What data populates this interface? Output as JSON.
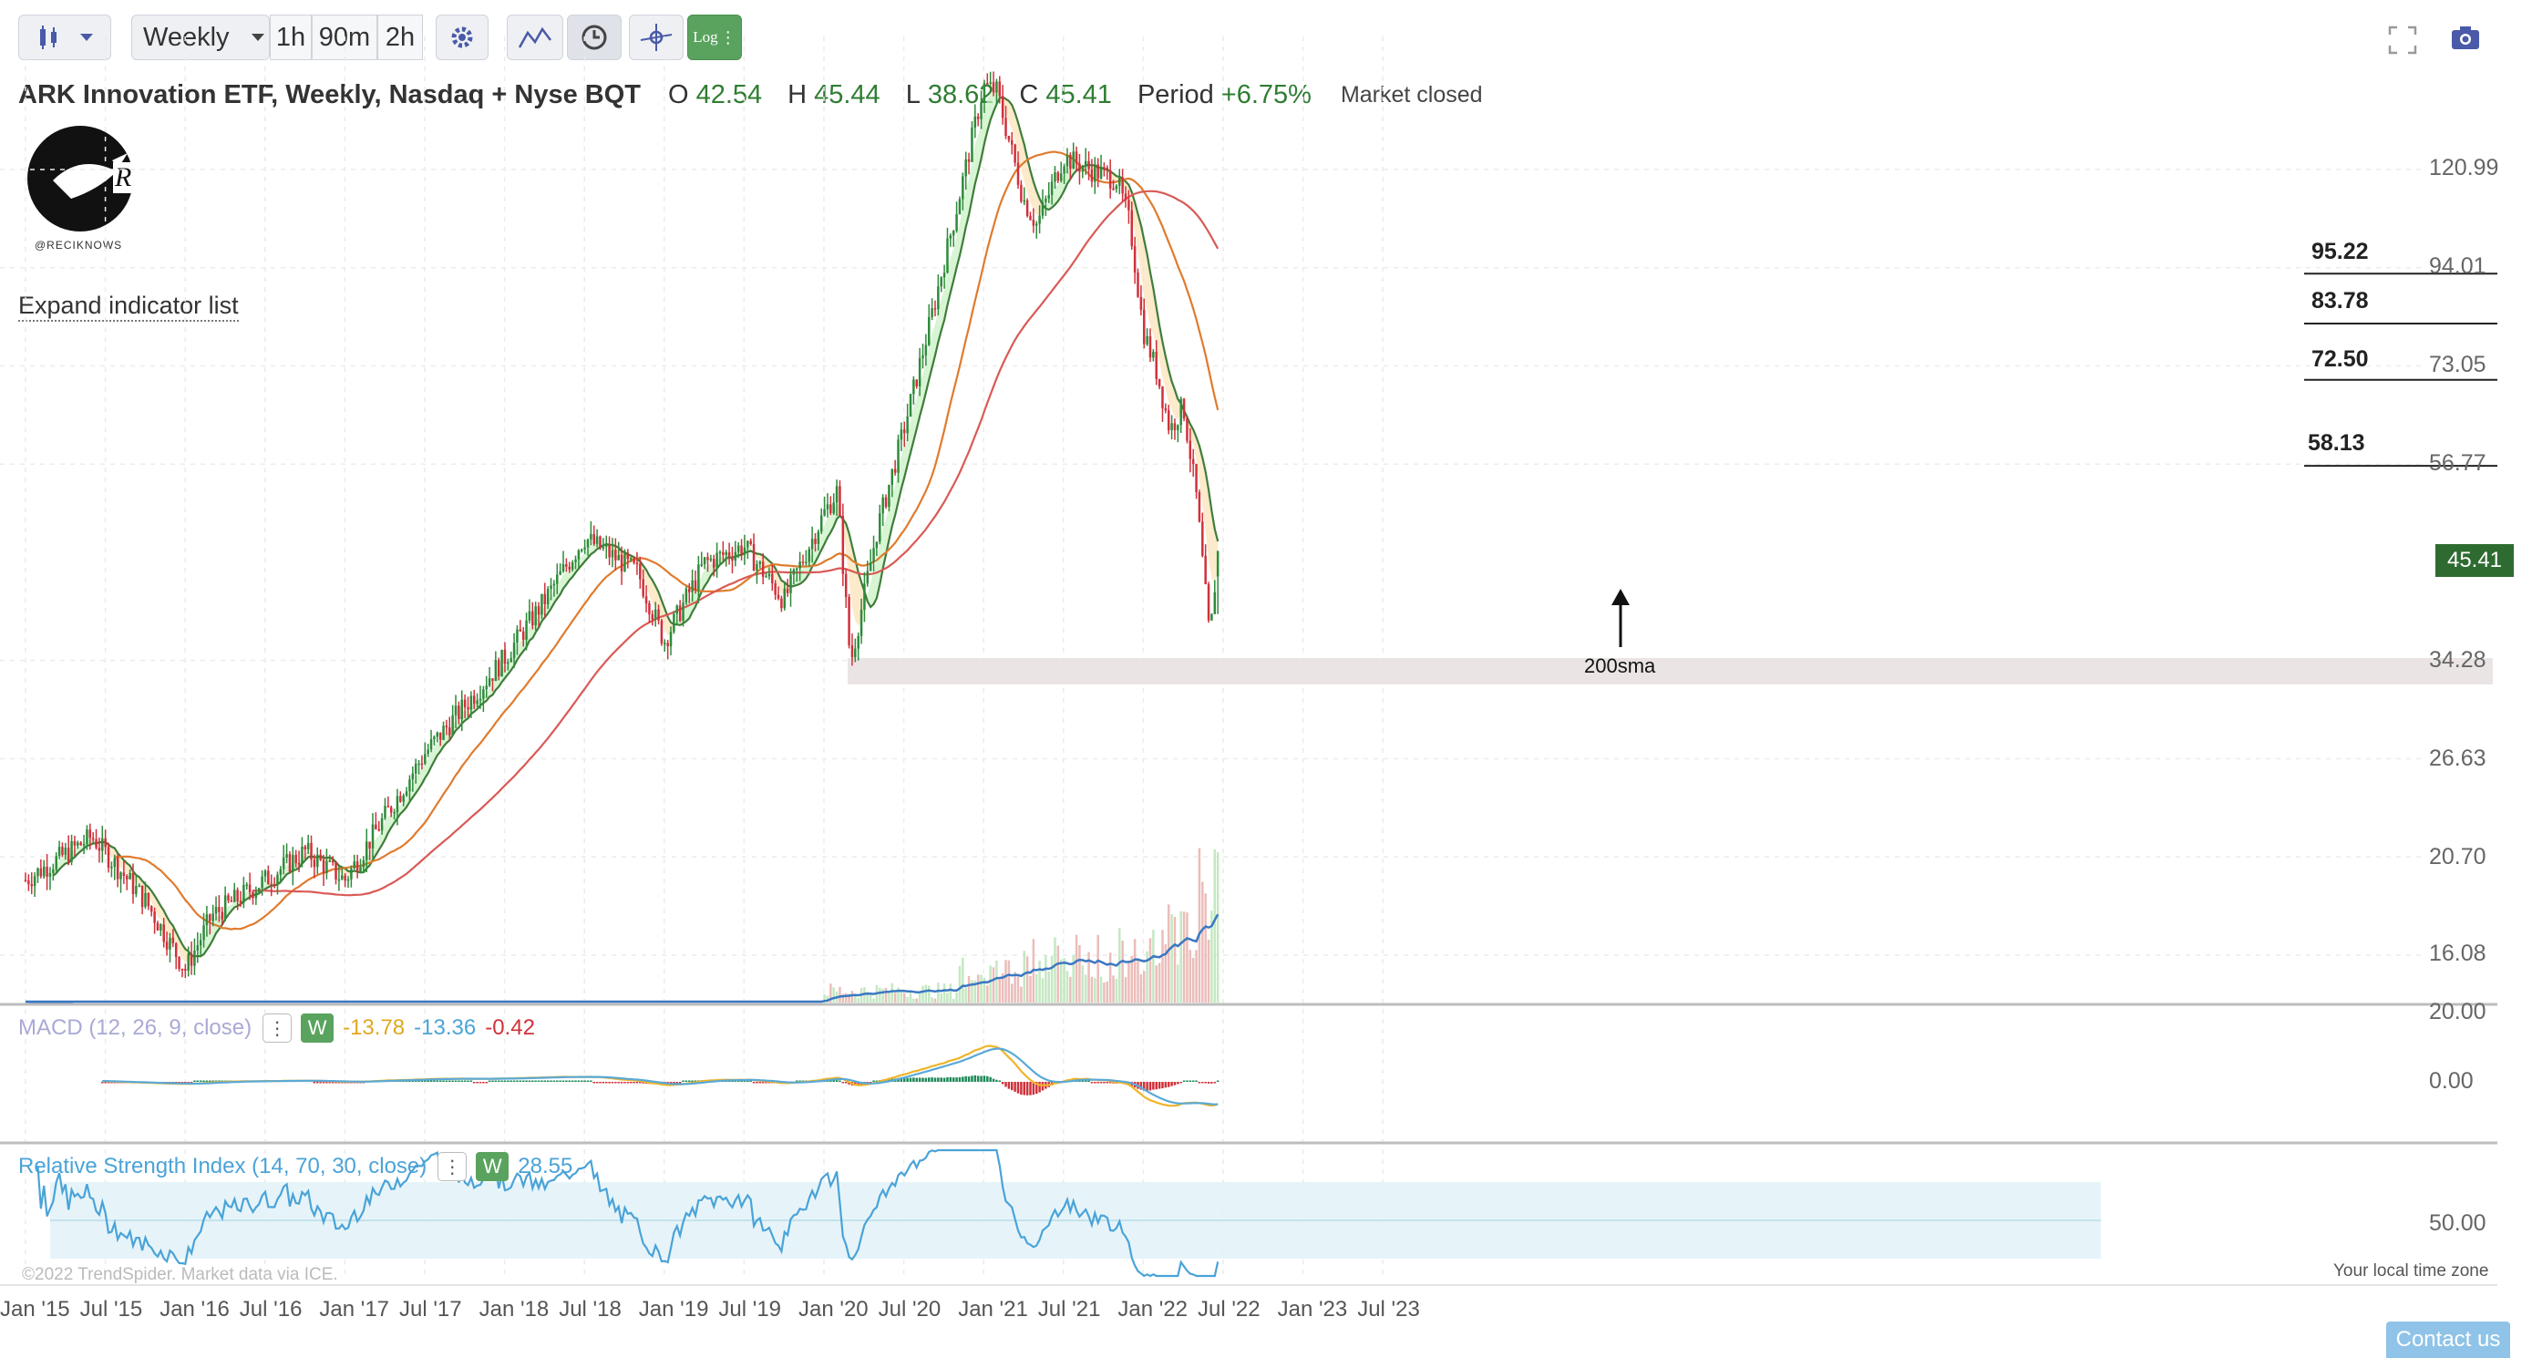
{
  "toolbar": {
    "timeframe_select": "Weekly",
    "intervals": [
      "1h",
      "90m",
      "2h"
    ],
    "log_label": "Log"
  },
  "header": {
    "title": "ARK Innovation ETF, Weekly, Nasdaq + Nyse BQT",
    "o_label": "O",
    "o_value": "42.54",
    "h_label": "H",
    "h_value": "45.44",
    "l_label": "L",
    "l_value": "38.62",
    "c_label": "C",
    "c_value": "45.41",
    "period_label": "Period",
    "period_value": "+6.75%",
    "market_status": "Market closed"
  },
  "watermark": {
    "handle": "@RECIKNOWS",
    "letter": "R"
  },
  "expand_indicator_label": "Expand indicator list",
  "price_axis": [
    "120.99",
    "94.01",
    "73.05",
    "56.77",
    "34.28",
    "26.63",
    "20.70",
    "16.08"
  ],
  "current_price": "45.41",
  "levels": [
    "95.22",
    "83.78",
    "72.50",
    "58.13"
  ],
  "annotation": {
    "text": "200sma"
  },
  "date_axis": [
    "Jan '15",
    "Jul '15",
    "Jan '16",
    "Jul '16",
    "Jan '17",
    "Jul '17",
    "Jan '18",
    "Jul '18",
    "Jan '19",
    "Jul '19",
    "Jan '20",
    "Jul '20",
    "Jan '21",
    "Jul '21",
    "Jan '22",
    "Jul '22",
    "Jan '23",
    "Jul '23"
  ],
  "macd": {
    "title": "MACD (12, 26, 9, close)",
    "badge": "W",
    "v1": "-13.78",
    "v2": "-13.36",
    "v3": "-0.42",
    "axis": [
      "20.00",
      "0.00"
    ]
  },
  "rsi": {
    "title": "Relative Strength Index (14, 70, 30, close)",
    "badge": "W",
    "value": "28.55",
    "axis": [
      "50.00"
    ]
  },
  "copyright": "©2022 TrendSpider. Market data via ICE.",
  "timezone_label": "Your local time zone",
  "contact_label": "Contact us",
  "colors": {
    "up": "#2e8b3a",
    "down": "#d0313a",
    "sma_green": "#3f7d3a",
    "sma_orange": "#e07b2e",
    "sma_red": "#d95a55",
    "macd_blue": "#5aa9d6",
    "macd_yellow": "#f0b429",
    "rsi": "#4aa3d8",
    "price_badge": "#2e6b30"
  },
  "chart_data": {
    "type": "candlestick",
    "title": "ARK Innovation ETF, Weekly, Nasdaq + Nyse BQT",
    "x_range": [
      "Jan '15",
      "Jul '23"
    ],
    "y_scale": "log",
    "ohlc_last": {
      "o": 42.54,
      "h": 45.44,
      "l": 38.62,
      "c": 45.41
    },
    "horizontal_levels": [
      95.22,
      83.78,
      72.5,
      58.13
    ],
    "support_zone": [
      33.5,
      35.5
    ],
    "key_points": [
      {
        "date": "Jan '15",
        "close": 19.5
      },
      {
        "date": "Jan '16",
        "close": 15.5
      },
      {
        "date": "Jan '17",
        "close": 19.5
      },
      {
        "date": "Jan '18",
        "close": 34.5
      },
      {
        "date": "Jul '18",
        "close": 47
      },
      {
        "date": "Jan '19",
        "close": 36
      },
      {
        "date": "Jan '20",
        "close": 50
      },
      {
        "date": "Mar '20",
        "close": 34
      },
      {
        "date": "Jan '21",
        "close": 150
      },
      {
        "date": "Jul '21",
        "close": 125
      },
      {
        "date": "Jan '22",
        "close": 75
      },
      {
        "date": "May '22",
        "close": 36
      },
      {
        "date": "Jun '22",
        "close": 45.41
      }
    ],
    "indicators": {
      "macd": [
        -13.78,
        -13.36,
        -0.42
      ],
      "rsi": 28.55
    }
  }
}
